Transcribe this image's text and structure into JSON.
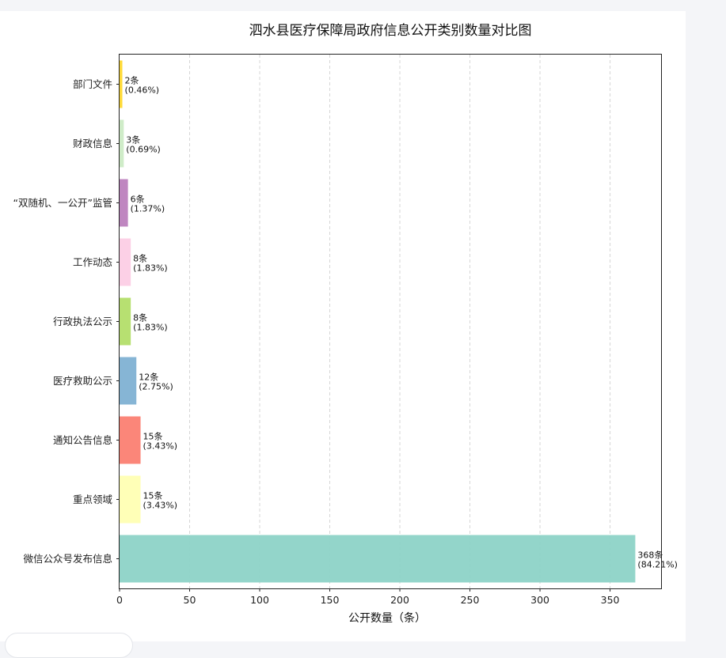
{
  "chart_data": {
    "type": "bar",
    "orientation": "horizontal",
    "title": "泗水县医疗保障局政府信息公开类别数量对比图",
    "xlabel": "公开数量（条）",
    "ylabel": "",
    "xlim": [
      0,
      386.4
    ],
    "xticks": [
      0,
      50,
      100,
      150,
      200,
      250,
      300,
      350
    ],
    "grid": "x-dashed",
    "categories": [
      "部门文件",
      "财政信息",
      "“双随机、一公开”监管",
      "工作动态",
      "行政执法公示",
      "医疗救助公示",
      "通知公告信息",
      "重点领域",
      "微信公众号发布信息"
    ],
    "values": [
      2,
      3,
      6,
      8,
      8,
      12,
      15,
      15,
      368
    ],
    "value_labels": [
      "2条",
      "3条",
      "6条",
      "8条",
      "8条",
      "12条",
      "15条",
      "15条",
      "368条"
    ],
    "percent_labels": [
      "(0.46%)",
      "(0.69%)",
      "(1.37%)",
      "(1.83%)",
      "(1.83%)",
      "(2.75%)",
      "(3.43%)",
      "(3.43%)",
      "(84.21%)"
    ],
    "colors": [
      "#ffd92f",
      "#ccebc5",
      "#bc80bd",
      "#fccde5",
      "#b3de69",
      "#80b1d3",
      "#fb8072",
      "#ffffb3",
      "#8dd3c7"
    ]
  }
}
